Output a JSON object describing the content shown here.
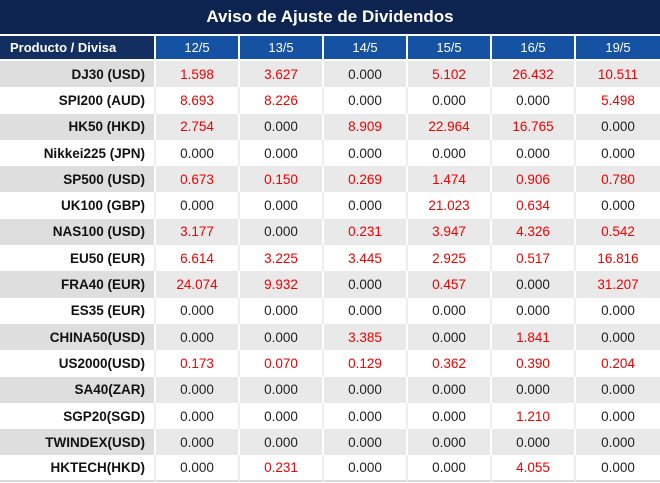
{
  "title": "Aviso de Ajuste de Dividendos",
  "colors": {
    "title_bg": "#0d2350",
    "product_header_bg": "#132f62",
    "date_header_bg": "#1552a3",
    "stripe_product_bg": "#dedede",
    "stripe_value_bg": "#e9e9e9",
    "positive_red": "#f10000",
    "zero_text": "#1f1f1f"
  },
  "table": {
    "product_header": "Producto / Divisa",
    "columns": [
      "12/5",
      "13/5",
      "14/5",
      "15/5",
      "16/5",
      "19/5"
    ],
    "rows": [
      {
        "product": "DJ30 (USD)",
        "values": [
          "1.598",
          "3.627",
          "0.000",
          "5.102",
          "26.432",
          "10.511"
        ]
      },
      {
        "product": "SPI200 (AUD)",
        "values": [
          "8.693",
          "8.226",
          "0.000",
          "0.000",
          "0.000",
          "5.498"
        ]
      },
      {
        "product": "HK50 (HKD)",
        "values": [
          "2.754",
          "0.000",
          "8.909",
          "22.964",
          "16.765",
          "0.000"
        ]
      },
      {
        "product": "Nikkei225 (JPN)",
        "values": [
          "0.000",
          "0.000",
          "0.000",
          "0.000",
          "0.000",
          "0.000"
        ]
      },
      {
        "product": "SP500 (USD)",
        "values": [
          "0.673",
          "0.150",
          "0.269",
          "1.474",
          "0.906",
          "0.780"
        ]
      },
      {
        "product": "UK100 (GBP)",
        "values": [
          "0.000",
          "0.000",
          "0.000",
          "21.023",
          "0.634",
          "0.000"
        ]
      },
      {
        "product": "NAS100 (USD)",
        "values": [
          "3.177",
          "0.000",
          "0.231",
          "3.947",
          "4.326",
          "0.542"
        ]
      },
      {
        "product": "EU50 (EUR)",
        "values": [
          "6.614",
          "3.225",
          "3.445",
          "2.925",
          "0.517",
          "16.816"
        ]
      },
      {
        "product": "FRA40 (EUR)",
        "values": [
          "24.074",
          "9.932",
          "0.000",
          "0.457",
          "0.000",
          "31.207"
        ]
      },
      {
        "product": "ES35 (EUR)",
        "values": [
          "0.000",
          "0.000",
          "0.000",
          "0.000",
          "0.000",
          "0.000"
        ]
      },
      {
        "product": "CHINA50(USD)",
        "values": [
          "0.000",
          "0.000",
          "3.385",
          "0.000",
          "1.841",
          "0.000"
        ]
      },
      {
        "product": "US2000(USD)",
        "values": [
          "0.173",
          "0.070",
          "0.129",
          "0.362",
          "0.390",
          "0.204"
        ]
      },
      {
        "product": "SA40(ZAR)",
        "values": [
          "0.000",
          "0.000",
          "0.000",
          "0.000",
          "0.000",
          "0.000"
        ]
      },
      {
        "product": "SGP20(SGD)",
        "values": [
          "0.000",
          "0.000",
          "0.000",
          "0.000",
          "1.210",
          "0.000"
        ]
      },
      {
        "product": "TWINDEX(USD)",
        "values": [
          "0.000",
          "0.000",
          "0.000",
          "0.000",
          "0.000",
          "0.000"
        ]
      },
      {
        "product": "HKTECH(HKD)",
        "values": [
          "0.000",
          "0.231",
          "0.000",
          "0.000",
          "4.055",
          "0.000"
        ]
      }
    ]
  }
}
